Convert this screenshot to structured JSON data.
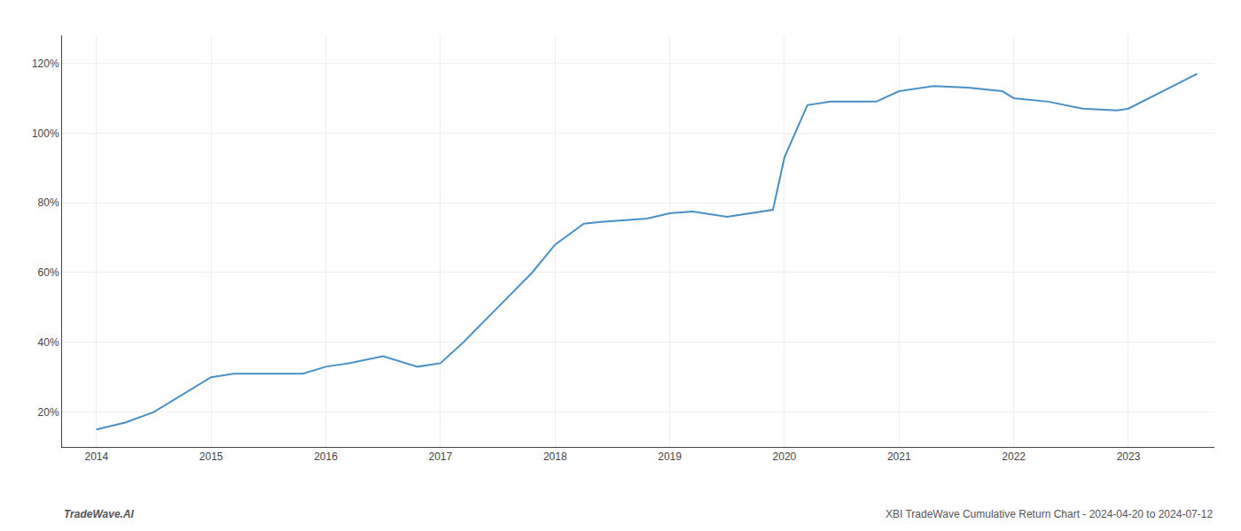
{
  "chart_data": {
    "type": "line",
    "x": [
      2014.0,
      2014.25,
      2014.5,
      2014.75,
      2015.0,
      2015.2,
      2015.4,
      2015.6,
      2015.8,
      2016.0,
      2016.2,
      2016.5,
      2016.8,
      2017.0,
      2017.2,
      2017.5,
      2017.8,
      2018.0,
      2018.25,
      2018.4,
      2018.6,
      2018.8,
      2019.0,
      2019.2,
      2019.5,
      2019.7,
      2019.9,
      2020.0,
      2020.2,
      2020.4,
      2020.6,
      2020.8,
      2021.0,
      2021.3,
      2021.6,
      2021.9,
      2022.0,
      2022.3,
      2022.6,
      2022.9,
      2023.0,
      2023.3,
      2023.6
    ],
    "values": [
      15,
      17,
      20,
      25,
      30,
      31,
      31,
      31,
      31,
      33,
      34,
      36,
      33,
      34,
      40,
      50,
      60,
      68,
      74,
      74.5,
      75,
      75.5,
      77,
      77.5,
      76,
      77,
      78,
      93,
      108,
      109,
      109,
      109,
      112,
      113.5,
      113,
      112,
      110,
      109,
      107,
      106.5,
      107,
      112,
      117
    ],
    "color": "#4a90c4",
    "xlim": [
      2013.7,
      2023.75
    ],
    "xticks": [
      2014,
      2015,
      2016,
      2017,
      2018,
      2019,
      2020,
      2021,
      2022,
      2023
    ],
    "ylim": [
      10,
      128
    ],
    "yticks": [
      {
        "value": 20,
        "label": "20%"
      },
      {
        "value": 40,
        "label": "40%"
      },
      {
        "value": 60,
        "label": "60%"
      },
      {
        "value": 80,
        "label": "80%"
      },
      {
        "value": 100,
        "label": "100%"
      },
      {
        "value": 120,
        "label": "120%"
      }
    ],
    "grid": true,
    "annotations": [
      "TradeWave.AI",
      "XBI TradeWave Cumulative Return Chart - 2024-04-20 to 2024-07-12"
    ]
  }
}
